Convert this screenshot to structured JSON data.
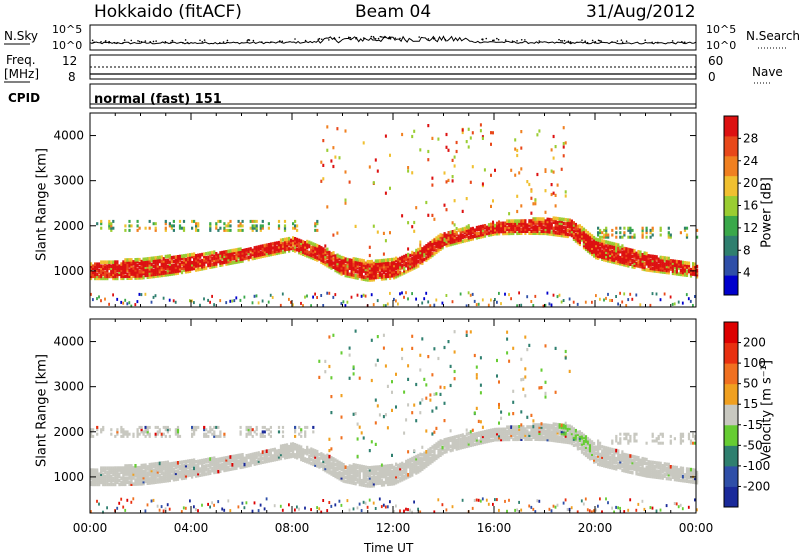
{
  "header": {
    "station": "Hokkaido (fitACF)",
    "beam": "Beam 04",
    "date": "31/Aug/2012"
  },
  "noise_panel": {
    "left_label": "N.Sky",
    "left_ticks": [
      "10^5",
      "10^0"
    ],
    "right_ticks": [
      "10^5",
      "10^0"
    ],
    "right_label": "N.Search"
  },
  "freq_panel": {
    "left_label_line1": "Freq.",
    "left_label_line2": "[MHz]",
    "left_ticks": [
      "12",
      "8"
    ],
    "right_ticks": [
      "60",
      "0"
    ],
    "right_label": "Nave"
  },
  "cpid_panel": {
    "label": "CPID",
    "text": "normal (fast) 151"
  },
  "x_axis": {
    "ticks": [
      "00:00",
      "04:00",
      "08:00",
      "12:00",
      "16:00",
      "20:00",
      "00:00"
    ],
    "label": "Time UT"
  },
  "chart_data": [
    {
      "type": "heatmap",
      "panel": "power",
      "ylabel": "Slant Range [km]",
      "ylim": [
        200,
        4500
      ],
      "yticks": [
        "1000",
        "2000",
        "3000",
        "4000"
      ],
      "xlim": [
        "00:00",
        "24:00"
      ],
      "colorbar_label": "Power [dB]",
      "colorbar_ticks": [
        "4",
        "8",
        "12",
        "16",
        "20",
        "24",
        "28"
      ],
      "colorbar_range": [
        0,
        32
      ],
      "colors": [
        "#0000cc",
        "#2f4fa8",
        "#2f7f6f",
        "#3aa84a",
        "#9acd32",
        "#f0c030",
        "#f08020",
        "#e8481a",
        "#dd1111"
      ],
      "main_band_center_km": [
        [
          0,
          1000
        ],
        [
          2,
          1050
        ],
        [
          4,
          1180
        ],
        [
          6,
          1350
        ],
        [
          8,
          1600
        ],
        [
          9,
          1400
        ],
        [
          10,
          1100
        ],
        [
          11,
          1000
        ],
        [
          12,
          1050
        ],
        [
          13,
          1300
        ],
        [
          14,
          1700
        ],
        [
          16,
          1950
        ],
        [
          18,
          2000
        ],
        [
          19,
          1950
        ],
        [
          20,
          1500
        ],
        [
          22,
          1200
        ],
        [
          24,
          1000
        ]
      ]
    },
    {
      "type": "heatmap",
      "panel": "velocity",
      "ylabel": "Slant Range [km]",
      "ylim": [
        200,
        4500
      ],
      "yticks": [
        "1000",
        "2000",
        "3000",
        "4000"
      ],
      "xlim": [
        "00:00",
        "24:00"
      ],
      "colorbar_label": "Velocity [m s⁻¹]",
      "colorbar_ticks": [
        "200",
        "100",
        "50",
        "15",
        "-15",
        "-50",
        "-100",
        "-200"
      ],
      "colorbar_range": [
        -250,
        250
      ],
      "ground_scatter_color": "#c8c8c0",
      "colors": [
        "#1a2a9a",
        "#2f4fa8",
        "#2f7f6f",
        "#66cc33",
        "#c8c8c0",
        "#f0a020",
        "#f07020",
        "#e83010",
        "#dd0000"
      ]
    }
  ]
}
